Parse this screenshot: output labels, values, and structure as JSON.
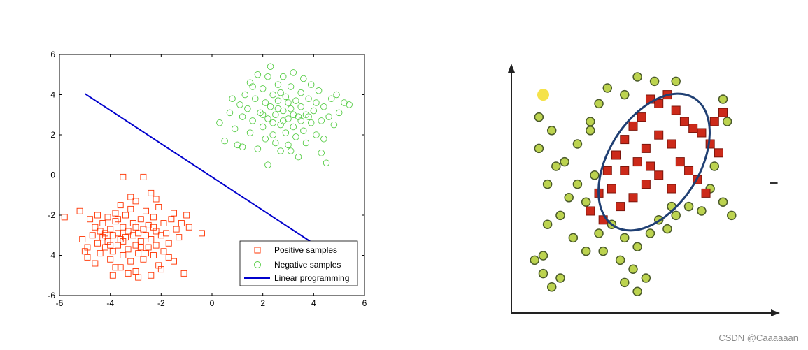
{
  "colors": {
    "positive": "#ff3300",
    "negative": "#55cc44",
    "line": "#0000cc",
    "green_dot": "#bcd34f",
    "green_dot_stroke": "#4a5a2a",
    "red_square": "#cc2a1a",
    "ellipse": "#1f3f73",
    "yellow_dot": "#f5e24a"
  },
  "watermark": "CSDN @Caaaaaan",
  "chart_data": [
    {
      "type": "scatter",
      "xlim": [
        -6,
        6
      ],
      "ylim": [
        -6,
        6
      ],
      "x_ticks": [
        "-6",
        "-4",
        "-2",
        "0",
        "2",
        "4",
        "6"
      ],
      "y_ticks": [
        "6",
        "4",
        "2",
        "0",
        "-2",
        "-4",
        "-6"
      ],
      "x_tick_values": [
        -6,
        -4,
        -2,
        0,
        2,
        4,
        6
      ],
      "y_tick_values": [
        6,
        4,
        2,
        0,
        -2,
        -4,
        -6
      ],
      "legend_placement": "bottom-right",
      "series": [
        {
          "name": "Positive samples",
          "marker": "square",
          "points": [
            [
              -5.8,
              -2.1
            ],
            [
              -5.2,
              -1.8
            ],
            [
              -5.1,
              -3.2
            ],
            [
              -5.0,
              -3.8
            ],
            [
              -4.9,
              -3.6
            ],
            [
              -4.8,
              -2.2
            ],
            [
              -4.7,
              -3.0
            ],
            [
              -4.6,
              -2.6
            ],
            [
              -4.5,
              -3.4
            ],
            [
              -4.5,
              -2.0
            ],
            [
              -4.4,
              -2.8
            ],
            [
              -4.4,
              -3.9
            ],
            [
              -4.3,
              -3.1
            ],
            [
              -4.3,
              -2.4
            ],
            [
              -4.2,
              -3.6
            ],
            [
              -4.2,
              -2.9
            ],
            [
              -4.1,
              -2.1
            ],
            [
              -4.1,
              -3.3
            ],
            [
              -4.0,
              -4.2
            ],
            [
              -4.0,
              -2.7
            ],
            [
              -3.9,
              -3.0
            ],
            [
              -3.9,
              -3.8
            ],
            [
              -3.8,
              -2.3
            ],
            [
              -3.8,
              -4.6
            ],
            [
              -3.7,
              -2.9
            ],
            [
              -3.7,
              -3.5
            ],
            [
              -3.6,
              -1.5
            ],
            [
              -3.6,
              -3.2
            ],
            [
              -3.5,
              -0.1
            ],
            [
              -3.5,
              -2.6
            ],
            [
              -3.5,
              -4.0
            ],
            [
              -3.4,
              -3.1
            ],
            [
              -3.4,
              -2.0
            ],
            [
              -3.3,
              -3.7
            ],
            [
              -3.3,
              -2.8
            ],
            [
              -3.2,
              -4.3
            ],
            [
              -3.2,
              -1.7
            ],
            [
              -3.1,
              -3.0
            ],
            [
              -3.1,
              -2.4
            ],
            [
              -3.0,
              -3.5
            ],
            [
              -3.0,
              -4.8
            ],
            [
              -3.0,
              -1.3
            ],
            [
              -2.9,
              -2.9
            ],
            [
              -2.9,
              -3.9
            ],
            [
              -2.8,
              -2.2
            ],
            [
              -2.8,
              -3.3
            ],
            [
              -2.7,
              -0.1
            ],
            [
              -2.7,
              -2.7
            ],
            [
              -2.7,
              -4.2
            ],
            [
              -2.6,
              -3.0
            ],
            [
              -2.6,
              -1.8
            ],
            [
              -2.5,
              -3.6
            ],
            [
              -2.5,
              -2.5
            ],
            [
              -2.4,
              -0.9
            ],
            [
              -2.4,
              -3.2
            ],
            [
              -2.3,
              -4.0
            ],
            [
              -2.3,
              -2.1
            ],
            [
              -2.2,
              -2.8
            ],
            [
              -2.2,
              -3.5
            ],
            [
              -2.1,
              -1.6
            ],
            [
              -2.0,
              -3.0
            ],
            [
              -2.0,
              -4.7
            ],
            [
              -1.9,
              -2.4
            ],
            [
              -1.9,
              -3.8
            ],
            [
              -1.8,
              -2.9
            ],
            [
              -1.7,
              -3.4
            ],
            [
              -1.6,
              -2.2
            ],
            [
              -1.5,
              -4.3
            ],
            [
              -1.4,
              -2.7
            ],
            [
              -1.3,
              -3.1
            ],
            [
              -1.2,
              -2.4
            ],
            [
              -1.1,
              -4.9
            ],
            [
              -1.0,
              -2.0
            ],
            [
              -0.9,
              -2.6
            ],
            [
              -0.4,
              -2.9
            ],
            [
              -4.9,
              -4.1
            ],
            [
              -4.6,
              -4.4
            ],
            [
              -3.9,
              -5.0
            ],
            [
              -3.6,
              -4.6
            ],
            [
              -3.3,
              -4.9
            ],
            [
              -2.9,
              -5.1
            ],
            [
              -2.4,
              -5.0
            ],
            [
              -2.1,
              -4.5
            ],
            [
              -1.7,
              -4.1
            ],
            [
              -3.8,
              -1.9
            ],
            [
              -3.2,
              -1.1
            ],
            [
              -2.2,
              -1.2
            ],
            [
              -1.5,
              -1.9
            ],
            [
              -4.2,
              -3.0
            ],
            [
              -3.0,
              -2.6
            ],
            [
              -2.6,
              -3.9
            ],
            [
              -3.5,
              -3.3
            ],
            [
              -2.8,
              -3.6
            ],
            [
              -2.3,
              -2.6
            ],
            [
              -3.7,
              -2.2
            ],
            [
              -4.0,
              -3.5
            ]
          ]
        },
        {
          "name": "Negative samples",
          "marker": "circle",
          "points": [
            [
              0.3,
              2.6
            ],
            [
              0.5,
              1.7
            ],
            [
              0.7,
              3.1
            ],
            [
              0.8,
              3.8
            ],
            [
              0.9,
              2.3
            ],
            [
              1.0,
              1.5
            ],
            [
              1.1,
              3.5
            ],
            [
              1.2,
              2.9
            ],
            [
              1.3,
              4.0
            ],
            [
              1.4,
              3.3
            ],
            [
              1.5,
              2.1
            ],
            [
              1.5,
              4.6
            ],
            [
              1.6,
              2.7
            ],
            [
              1.7,
              3.8
            ],
            [
              1.8,
              1.3
            ],
            [
              1.8,
              5.0
            ],
            [
              1.9,
              3.1
            ],
            [
              2.0,
              2.4
            ],
            [
              2.0,
              4.3
            ],
            [
              2.1,
              3.6
            ],
            [
              2.1,
              1.8
            ],
            [
              2.2,
              4.9
            ],
            [
              2.2,
              2.8
            ],
            [
              2.3,
              3.4
            ],
            [
              2.3,
              5.4
            ],
            [
              2.4,
              2.0
            ],
            [
              2.4,
              4.0
            ],
            [
              2.5,
              3.0
            ],
            [
              2.5,
              1.6
            ],
            [
              2.6,
              4.5
            ],
            [
              2.6,
              3.7
            ],
            [
              2.7,
              2.5
            ],
            [
              2.7,
              1.2
            ],
            [
              2.8,
              3.2
            ],
            [
              2.8,
              4.9
            ],
            [
              2.9,
              2.1
            ],
            [
              2.9,
              3.9
            ],
            [
              3.0,
              2.8
            ],
            [
              3.0,
              1.5
            ],
            [
              3.1,
              4.4
            ],
            [
              3.1,
              3.3
            ],
            [
              3.2,
              2.4
            ],
            [
              3.2,
              5.1
            ],
            [
              3.3,
              3.7
            ],
            [
              3.3,
              1.9
            ],
            [
              3.4,
              2.9
            ],
            [
              3.5,
              4.1
            ],
            [
              3.5,
              3.4
            ],
            [
              3.6,
              2.2
            ],
            [
              3.6,
              4.8
            ],
            [
              3.7,
              3.0
            ],
            [
              3.7,
              1.6
            ],
            [
              3.8,
              3.8
            ],
            [
              3.9,
              2.6
            ],
            [
              3.9,
              4.5
            ],
            [
              4.0,
              3.2
            ],
            [
              4.1,
              2.0
            ],
            [
              4.1,
              3.6
            ],
            [
              4.2,
              4.2
            ],
            [
              4.3,
              2.7
            ],
            [
              4.3,
              1.1
            ],
            [
              4.4,
              3.4
            ],
            [
              4.5,
              0.6
            ],
            [
              4.6,
              2.9
            ],
            [
              4.7,
              3.8
            ],
            [
              4.8,
              2.5
            ],
            [
              5.0,
              3.1
            ],
            [
              5.2,
              3.6
            ],
            [
              5.4,
              3.5
            ],
            [
              4.9,
              4.0
            ],
            [
              3.4,
              0.9
            ],
            [
              2.2,
              0.5
            ],
            [
              1.6,
              4.4
            ],
            [
              2.8,
              2.7
            ],
            [
              3.2,
              3.0
            ],
            [
              2.6,
              3.3
            ],
            [
              3.8,
              2.9
            ],
            [
              2.4,
              2.6
            ],
            [
              3.1,
              1.2
            ],
            [
              4.4,
              1.8
            ],
            [
              1.2,
              1.4
            ],
            [
              2.0,
              3.0
            ],
            [
              3.0,
              3.6
            ],
            [
              3.5,
              2.7
            ],
            [
              2.7,
              4.1
            ]
          ]
        },
        {
          "name": "Linear programming",
          "marker": "line",
          "points": [
            [
              -5,
              4.05
            ],
            [
              4.1,
              -3.5
            ]
          ]
        }
      ]
    },
    {
      "type": "scatter",
      "axes_labels": false,
      "right_mark": "–",
      "series": [
        {
          "marker": "square",
          "points": [
            [
              0.38,
              0.58
            ],
            [
              0.42,
              0.65
            ],
            [
              0.46,
              0.72
            ],
            [
              0.5,
              0.78
            ],
            [
              0.54,
              0.82
            ],
            [
              0.58,
              0.9
            ],
            [
              0.62,
              0.88
            ],
            [
              0.66,
              0.92
            ],
            [
              0.7,
              0.85
            ],
            [
              0.74,
              0.8
            ],
            [
              0.78,
              0.77
            ],
            [
              0.82,
              0.75
            ],
            [
              0.86,
              0.7
            ],
            [
              0.9,
              0.66
            ],
            [
              0.34,
              0.48
            ],
            [
              0.4,
              0.5
            ],
            [
              0.46,
              0.58
            ],
            [
              0.52,
              0.62
            ],
            [
              0.56,
              0.68
            ],
            [
              0.62,
              0.74
            ],
            [
              0.68,
              0.7
            ],
            [
              0.72,
              0.62
            ],
            [
              0.76,
              0.58
            ],
            [
              0.8,
              0.54
            ],
            [
              0.84,
              0.48
            ],
            [
              0.44,
              0.42
            ],
            [
              0.5,
              0.46
            ],
            [
              0.56,
              0.52
            ],
            [
              0.62,
              0.56
            ],
            [
              0.68,
              0.5
            ],
            [
              0.3,
              0.4
            ],
            [
              0.36,
              0.36
            ],
            [
              0.88,
              0.8
            ],
            [
              0.92,
              0.84
            ],
            [
              0.58,
              0.6
            ]
          ]
        },
        {
          "marker": "circle",
          "points": [
            [
              0.06,
              0.82
            ],
            [
              0.12,
              0.76
            ],
            [
              0.18,
              0.62
            ],
            [
              0.24,
              0.7
            ],
            [
              0.3,
              0.8
            ],
            [
              0.34,
              0.88
            ],
            [
              0.38,
              0.95
            ],
            [
              0.46,
              0.92
            ],
            [
              0.52,
              1.0
            ],
            [
              0.6,
              0.98
            ],
            [
              0.92,
              0.9
            ],
            [
              0.94,
              0.8
            ],
            [
              0.88,
              0.6
            ],
            [
              0.86,
              0.5
            ],
            [
              0.92,
              0.44
            ],
            [
              0.96,
              0.38
            ],
            [
              0.06,
              0.68
            ],
            [
              0.1,
              0.52
            ],
            [
              0.14,
              0.6
            ],
            [
              0.2,
              0.46
            ],
            [
              0.24,
              0.52
            ],
            [
              0.28,
              0.44
            ],
            [
              0.32,
              0.56
            ],
            [
              0.1,
              0.34
            ],
            [
              0.16,
              0.38
            ],
            [
              0.22,
              0.28
            ],
            [
              0.28,
              0.22
            ],
            [
              0.34,
              0.3
            ],
            [
              0.4,
              0.34
            ],
            [
              0.46,
              0.28
            ],
            [
              0.52,
              0.24
            ],
            [
              0.58,
              0.3
            ],
            [
              0.62,
              0.36
            ],
            [
              0.66,
              0.32
            ],
            [
              0.7,
              0.38
            ],
            [
              0.76,
              0.42
            ],
            [
              0.82,
              0.4
            ],
            [
              0.44,
              0.18
            ],
            [
              0.5,
              0.14
            ],
            [
              0.46,
              0.08
            ],
            [
              0.52,
              0.04
            ],
            [
              0.56,
              0.1
            ],
            [
              0.04,
              0.18
            ],
            [
              0.08,
              0.2
            ],
            [
              0.08,
              0.12
            ],
            [
              0.12,
              0.06
            ],
            [
              0.16,
              0.1
            ],
            [
              0.36,
              0.22
            ],
            [
              0.68,
              0.42
            ],
            [
              0.3,
              0.76
            ],
            [
              0.7,
              0.98
            ]
          ]
        },
        {
          "marker": "yellow-dot",
          "points": [
            [
              0.08,
              0.92
            ]
          ]
        }
      ]
    }
  ],
  "legend": {
    "positive_label": "Positive samples",
    "negative_label": "Negative samples",
    "line_label": "Linear programming"
  }
}
